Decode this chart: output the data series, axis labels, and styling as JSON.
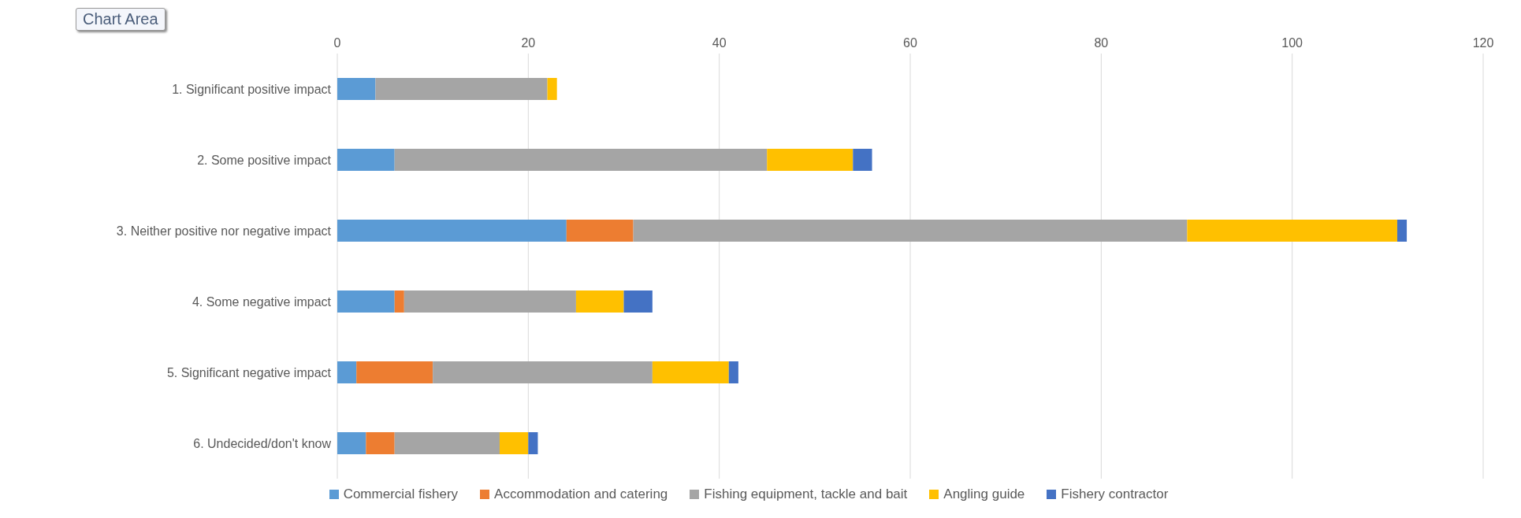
{
  "chart_data": {
    "type": "bar",
    "orientation": "horizontal",
    "stacked": true,
    "categories": [
      "1. Significant positive impact",
      "2. Some positive impact",
      "3. Neither positive nor negative impact",
      "4. Some negative impact",
      "5. Significant negative impact",
      "6. Undecided/don't know"
    ],
    "series": [
      {
        "name": "Commercial fishery",
        "color": "#5b9bd5",
        "values": [
          4,
          6,
          24,
          6,
          2,
          3
        ]
      },
      {
        "name": "Accommodation and catering",
        "color": "#ed7d31",
        "values": [
          0,
          0,
          7,
          1,
          8,
          3
        ]
      },
      {
        "name": "Fishing equipment, tackle and bait",
        "color": "#a5a5a5",
        "values": [
          18,
          39,
          58,
          18,
          23,
          11
        ]
      },
      {
        "name": "Angling guide",
        "color": "#ffc000",
        "values": [
          1,
          9,
          22,
          5,
          8,
          3
        ]
      },
      {
        "name": "Fishery contractor",
        "color": "#4472c4",
        "values": [
          0,
          2,
          1,
          3,
          1,
          1
        ]
      }
    ],
    "xlim": [
      0,
      120
    ],
    "xticks": [
      0,
      20,
      40,
      60,
      80,
      100,
      120
    ],
    "grid": "x",
    "legend": "bottom",
    "annotations": [
      "Chart Area"
    ]
  }
}
